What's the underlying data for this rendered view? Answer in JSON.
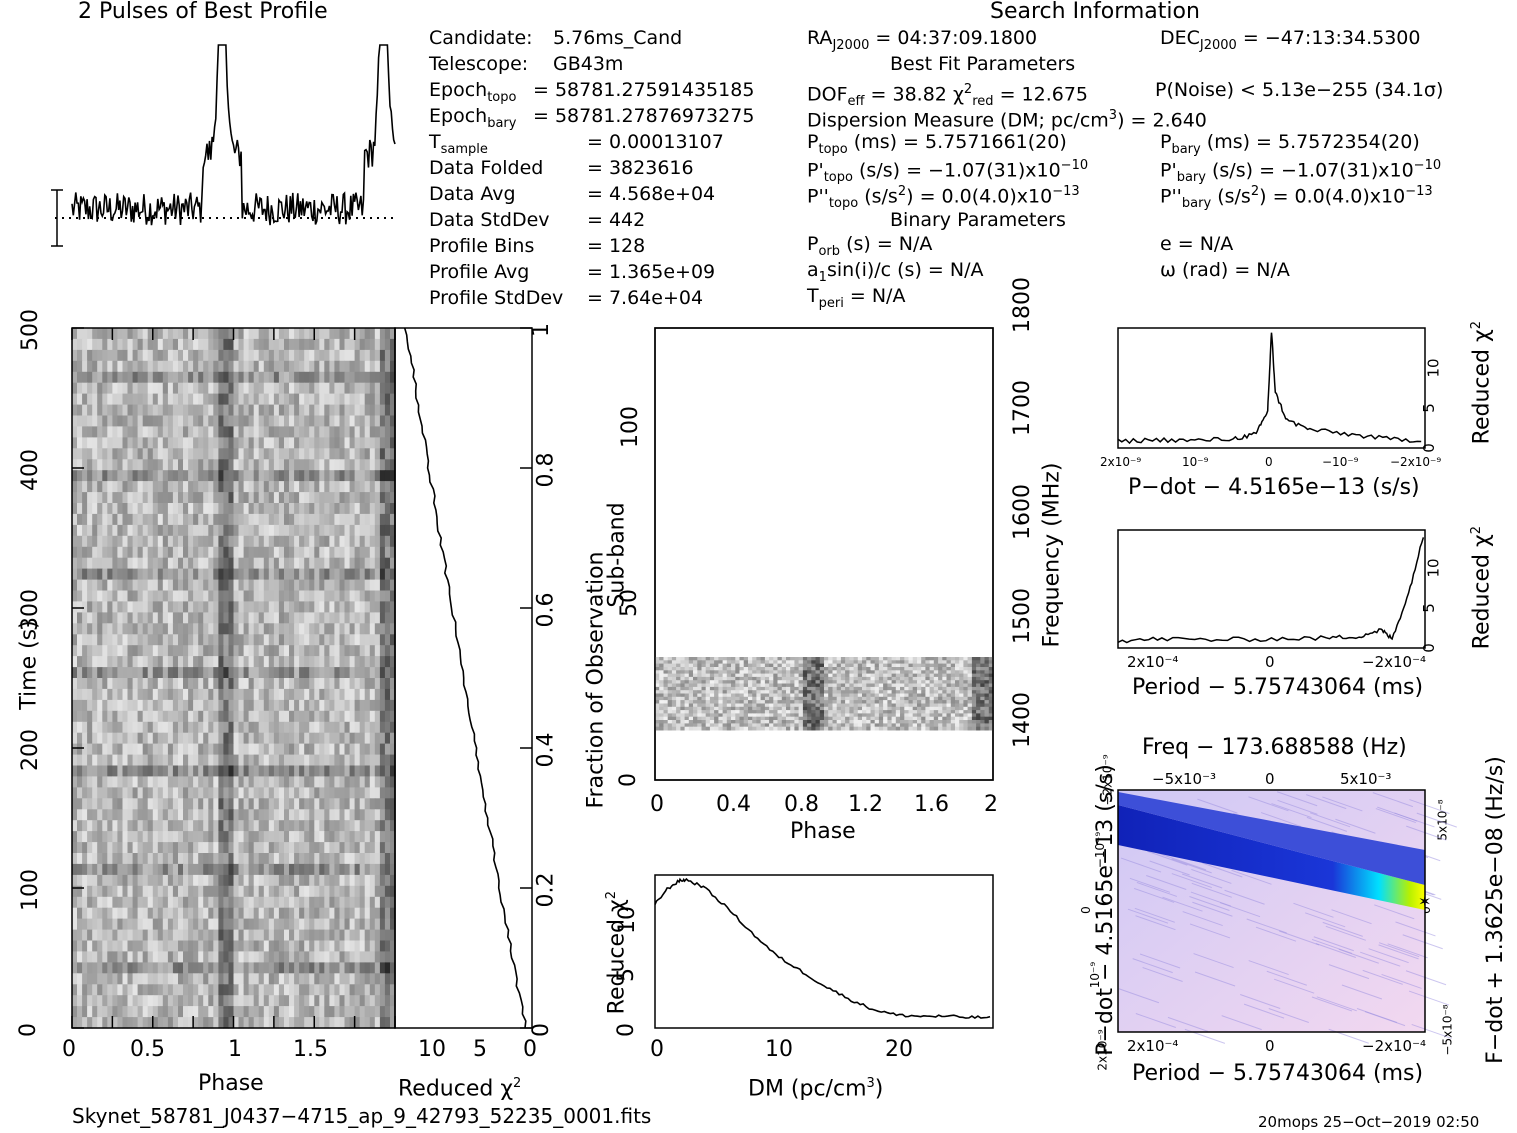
{
  "titles": {
    "profile": "2 Pulses of Best Profile",
    "search": "Search Information",
    "best_fit": "Best Fit Parameters",
    "binary": "Binary Parameters"
  },
  "info_left": [
    {
      "label": "Candidate:",
      "value": "5.76ms_Cand"
    },
    {
      "label": "Telescope:",
      "value": "GB43m"
    },
    {
      "label": "Epoch",
      "sub": "topo",
      "value": "= 58781.27591435185"
    },
    {
      "label": "Epoch",
      "sub": "bary",
      "value": "= 58781.27876973275"
    },
    {
      "label": "T",
      "sub": "sample",
      "value": "=  0.00013107"
    },
    {
      "label": "Data Folded",
      "value": "=  3823616"
    },
    {
      "label": "Data Avg",
      "value": "=  4.568e+04"
    },
    {
      "label": "Data StdDev",
      "value": "=  442"
    },
    {
      "label": "Profile Bins",
      "value": "=  128"
    },
    {
      "label": "Profile Avg",
      "value": "=  1.365e+09"
    },
    {
      "label": "Profile StdDev",
      "value": "=  7.64e+04"
    }
  ],
  "search_info": {
    "ra": "RA",
    "ra_sub": "J2000",
    "ra_val": "= 04:37:09.1800",
    "dec": "DEC",
    "dec_sub": "J2000",
    "dec_val": "= −47:13:34.5300"
  },
  "best_fit": {
    "dof": "DOF",
    "dof_sub": "eff",
    "dof_val": "= 38.82",
    "chi": "χ",
    "chi_sup": "2",
    "chi_sub": "red",
    "chi_val": "= 12.675",
    "pnoise": "P(Noise) < 5.13e−255   (34.1σ)",
    "dm": "Dispersion Measure (DM; pc/cm",
    "dm_sup": "3",
    "dm_val": ") = 2.640",
    "ptopo": "P",
    "ptopo_sub": "topo",
    "ptopo_val": "(ms) =  5.7571661(20)",
    "pbary": "P",
    "pbary_sub": "bary",
    "pbary_val": "(ms) =  5.7572354(20)",
    "pdtopo": "P'",
    "pdtopo_sub": "topo",
    "pdtopo_val": "(s/s) = −1.07(31)x10",
    "pdtopo_exp": "−10",
    "pdbary": "P'",
    "pdbary_sub": "bary",
    "pdbary_val": "(s/s) = −1.07(31)x10",
    "pdbary_exp": "−10",
    "pddtopo": "P''",
    "pddtopo_sub": "topo",
    "pddtopo_val": "(s/s",
    "pddtopo_sup": "2",
    "pddtopo_val2": ") = 0.0(4.0)x10",
    "pddtopo_exp": "−13",
    "pddbary": "P''",
    "pddbary_sub": "bary",
    "pddbary_val": "(s/s",
    "pddbary_sup": "2",
    "pddbary_val2": ") = 0.0(4.0)x10",
    "pddbary_exp": "−13"
  },
  "binary": {
    "porb": "P",
    "porb_sub": "orb",
    "porb_val": "(s) = N/A",
    "e": "e = N/A",
    "a1": "a",
    "a1_sub": "1",
    "a1_val": "sin(i)/c (s) = N/A",
    "omega": "ω (rad) = N/A",
    "tperi": "T",
    "tperi_sub": "peri",
    "tperi_val": "= N/A"
  },
  "footer": {
    "filename": "Skynet_58781_J0437−4715_ap_9_42793_52235_0001.fits",
    "stamp": "20mops 25−Oct−2019 02:50"
  },
  "axes": {
    "time_label": "Time (s)",
    "phase_label": "Phase",
    "redchi_label": "Reduced χ",
    "redchi_sup": "2",
    "fraction_label": "Fraction of Observation",
    "subband_label": "Sub-band",
    "freq_label": "Frequency (MHz)",
    "dm_label": "DM (pc/cm",
    "dm_sup": "3",
    "dm_close": ")",
    "pdot_label": "P−dot − 4.5165e−13 (s/s)",
    "period_label": "Period − 5.75743064 (ms)",
    "freq_top_label": "Freq − 173.688588 (Hz)",
    "pdot_left_label": "P−dot − 4.5165e−13 (s/s)",
    "fdot_right_label": "F−dot + 1.3625e−08 (Hz/s)"
  },
  "ticks": {
    "time": [
      "0",
      "100",
      "200",
      "300",
      "400",
      "500"
    ],
    "phase_main": [
      "0",
      "0.5",
      "1",
      "1.5"
    ],
    "redchi_x": [
      "10",
      "5",
      "0"
    ],
    "fraction": [
      "0",
      "0.2",
      "0.4",
      "0.6",
      "0.8",
      "1"
    ],
    "subband": [
      "0",
      "50",
      "100"
    ],
    "freq": [
      "1400",
      "1500",
      "1600",
      "1700",
      "1800"
    ],
    "phase_sub": [
      "0",
      "0.4",
      "0.8",
      "1.2",
      "1.6",
      "2"
    ],
    "dm_x": [
      "0",
      "10",
      "20"
    ],
    "dm_y": [
      "0",
      "5",
      "10"
    ],
    "redchi_y": [
      "0",
      "5",
      "10"
    ],
    "pdot_x": [
      "2x10⁻⁹",
      "10⁻⁹",
      "0",
      "−10⁻⁹",
      "−2x10⁻⁹"
    ],
    "period_x": [
      "2x10⁻⁴",
      "0",
      "−2x10⁻⁴"
    ],
    "freq_top": [
      "−5x10⁻³",
      "0",
      "5x10⁻³"
    ],
    "pdot_left": [
      "2x10⁻⁹",
      "10⁻⁹",
      "0",
      "−10⁻⁹",
      "−2x10⁻⁹"
    ],
    "fdot_right": [
      "−5x10⁻⁸",
      "0",
      "5x10⁻⁸"
    ]
  },
  "chart_data": [
    {
      "type": "line",
      "name": "profile",
      "ylabel": "",
      "xlabel": "",
      "x": [
        0,
        0.125,
        0.25,
        0.375,
        0.5,
        0.625,
        0.75,
        0.875,
        0.92,
        0.95,
        1.0,
        1.125,
        1.25,
        1.375,
        1.5,
        1.625,
        1.75,
        1.875,
        1.92,
        1.95,
        2.0
      ],
      "values": [
        0.3,
        0.1,
        0.05,
        0.15,
        0.1,
        0.05,
        0.2,
        0.4,
        0.95,
        0.8,
        0.3,
        0.1,
        0.15,
        0.05,
        0.1,
        0.2,
        0.3,
        0.45,
        1.0,
        0.85,
        0.3
      ]
    },
    {
      "type": "line",
      "name": "dm_curve",
      "xlabel": "DM (pc/cm3)",
      "ylabel": "Reduced chi2",
      "xlim": [
        0,
        28
      ],
      "ylim": [
        0,
        13
      ],
      "x": [
        0,
        1,
        2,
        2.6,
        4,
        6,
        8,
        10,
        12,
        14,
        16,
        18,
        20,
        22,
        24,
        26,
        28
      ],
      "values": [
        10.5,
        11.8,
        12.5,
        12.6,
        12,
        10.2,
        8.1,
        6.2,
        4.9,
        3.6,
        2.5,
        1.6,
        1.1,
        1.0,
        1.0,
        0.9,
        0.9
      ]
    },
    {
      "type": "line",
      "name": "pdot_curve",
      "xlabel": "P-dot - 4.5165e-13 (s/s)",
      "ylabel": "Reduced chi2",
      "xlim": [
        2e-09,
        -2e-09
      ],
      "ylim": [
        0,
        13
      ],
      "x": [
        2e-09,
        1.5e-09,
        1e-09,
        5e-10,
        2e-10,
        5e-11,
        0,
        -5e-11,
        -2e-10,
        -5e-10,
        -1e-09,
        -1.5e-09,
        -2e-09
      ],
      "values": [
        0.7,
        0.9,
        0.8,
        1.0,
        1.5,
        4,
        12.6,
        6,
        3,
        2,
        1.5,
        1.0,
        0.8
      ]
    },
    {
      "type": "line",
      "name": "period_curve",
      "xlabel": "Period - 5.75743064 (ms)",
      "ylabel": "Reduced chi2",
      "xlim": [
        0.00028,
        -0.00028
      ],
      "ylim": [
        0,
        13
      ],
      "x": [
        0.00028,
        0.0002,
        0.0001,
        0,
        -0.0001,
        -0.00016,
        -0.0002,
        -0.00022,
        -0.00025,
        -0.00028
      ],
      "values": [
        0.8,
        1.0,
        0.9,
        1.0,
        1.1,
        1.3,
        2.0,
        1.0,
        6,
        13
      ]
    }
  ]
}
